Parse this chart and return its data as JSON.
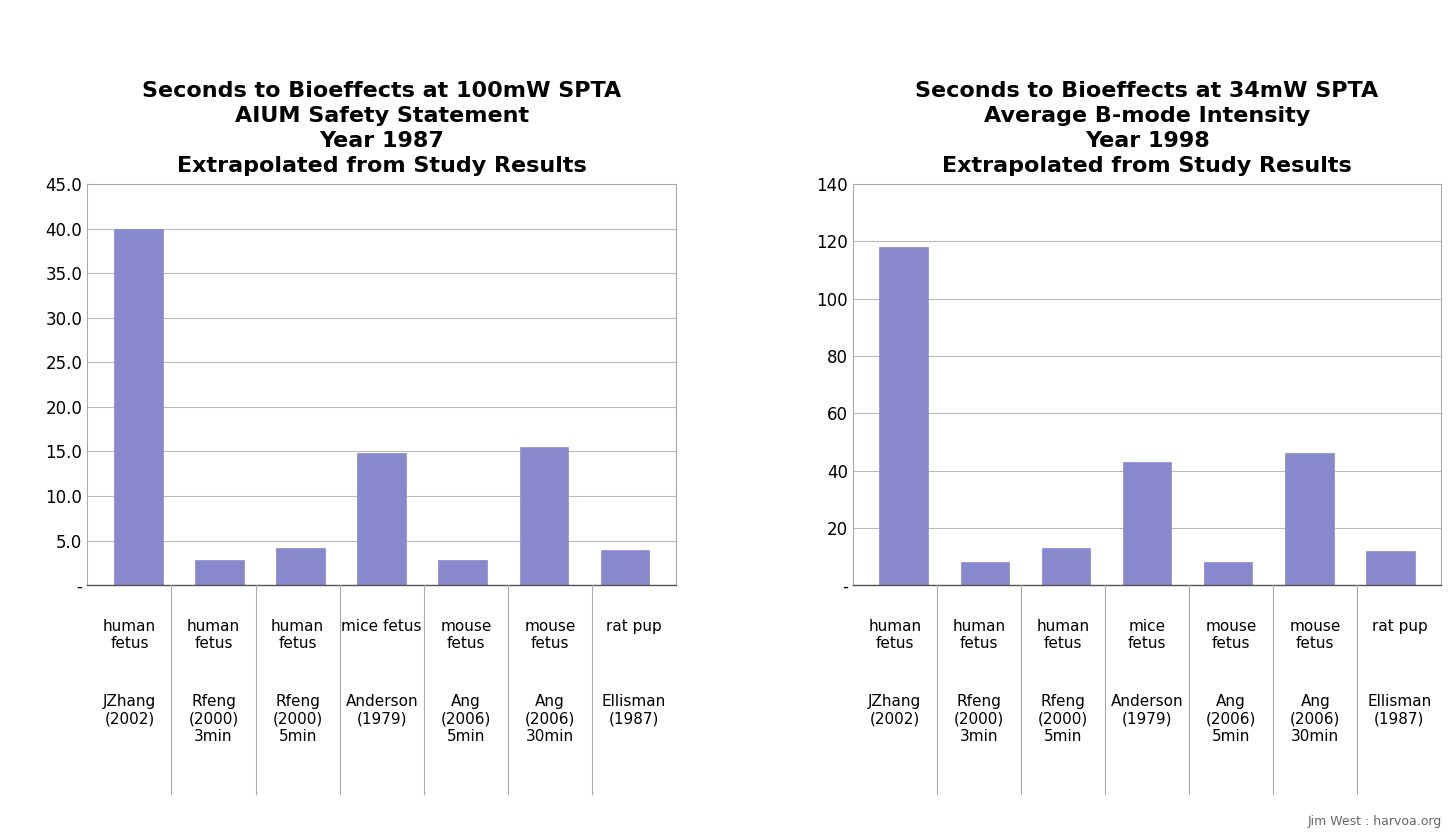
{
  "left_chart": {
    "title_lines": [
      "Seconds to Bioeffects at 100mW SPTA",
      "AIUM Safety Statement",
      "Year 1987",
      "Extrapolated from Study Results"
    ],
    "values": [
      40.0,
      2.8,
      4.2,
      14.8,
      2.8,
      15.5,
      4.0
    ],
    "categories_line1": [
      "human\nfetus",
      "human\nfetus",
      "human\nfetus",
      "mice fetus",
      "mouse\nfetus",
      "mouse\nfetus",
      "rat pup"
    ],
    "categories_line2": [
      "JZhang\n(2002)",
      "Rfeng\n(2000)\n3min",
      "Rfeng\n(2000)\n5min",
      "Anderson\n(1979)",
      "Ang\n(2006)\n5min",
      "Ang\n(2006)\n30min",
      "Ellisman\n(1987)"
    ],
    "ylim": [
      0,
      45
    ],
    "yticks": [
      0,
      5.0,
      10.0,
      15.0,
      20.0,
      25.0,
      30.0,
      35.0,
      40.0,
      45.0
    ],
    "yticklabels": [
      "-",
      "5.0",
      "10.0",
      "15.0",
      "20.0",
      "25.0",
      "30.0",
      "35.0",
      "40.0",
      "45.0"
    ]
  },
  "right_chart": {
    "title_lines": [
      "Seconds to Bioeffects at 34mW SPTA",
      "Average B-mode Intensity",
      "Year 1998",
      "Extrapolated from Study Results"
    ],
    "values": [
      118.0,
      8.0,
      13.0,
      43.0,
      8.0,
      46.0,
      12.0
    ],
    "categories_line1": [
      "human\nfetus",
      "human\nfetus",
      "human\nfetus",
      "mice\nfetus",
      "mouse\nfetus",
      "mouse\nfetus",
      "rat pup"
    ],
    "categories_line2": [
      "JZhang\n(2002)",
      "Rfeng\n(2000)\n3min",
      "Rfeng\n(2000)\n5min",
      "Anderson\n(1979)",
      "Ang\n(2006)\n5min",
      "Ang\n(2006)\n30min",
      "Ellisman\n(1987)"
    ],
    "ylim": [
      0,
      140
    ],
    "yticks": [
      0,
      20,
      40,
      60,
      80,
      100,
      120,
      140
    ],
    "yticklabels": [
      "-",
      "20",
      "40",
      "60",
      "80",
      "100",
      "120",
      "140"
    ]
  },
  "watermark": "Jim West : harvoa.org",
  "bg_color": "#ffffff",
  "bar_color": "#8888cc",
  "title_fontsize": 16,
  "tick_fontsize": 12,
  "label_fontsize": 11,
  "label2_fontsize": 11
}
